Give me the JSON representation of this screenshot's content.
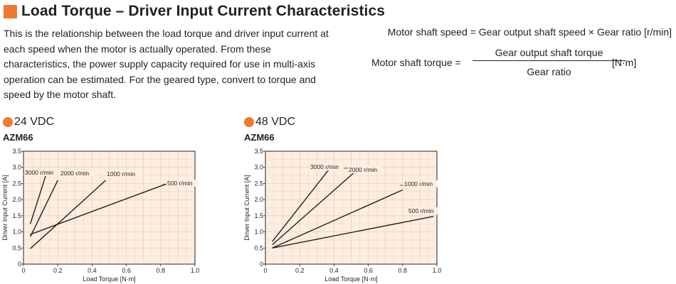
{
  "header": {
    "title": "Load Torque – Driver Input Current Characteristics",
    "accent_color": "#ee7a31"
  },
  "description": "This is the relationship between the load torque and driver input current at each speed when the motor is actually operated. From these characteristics, the power supply capacity required for use in multi-axis operation can be estimated. For the geared type, convert to torque and speed by the motor shaft.",
  "formulas": {
    "speed": "Motor shaft speed = Gear output shaft speed × Gear ratio [r/min]",
    "torque_label": "Motor shaft torque =",
    "torque_numerator": "Gear output shaft torque",
    "torque_denominator": "Gear ratio",
    "torque_unit": "[N·m]"
  },
  "chart_data": [
    {
      "type": "line",
      "voltage": "24 VDC",
      "model": "AZM66",
      "xlabel": "Load Torque [N·m]",
      "ylabel": "Driver Input Current [A]",
      "xlim": [
        0,
        1.0
      ],
      "ylim": [
        0,
        3.5
      ],
      "x_ticks": [
        "0",
        "0.2",
        "0.4",
        "0.6",
        "0.8",
        "1.0"
      ],
      "y_ticks": [
        "0",
        "0.5",
        "1.0",
        "1.5",
        "2.0",
        "2.5",
        "3.0",
        "3.5"
      ],
      "grid": true,
      "series": [
        {
          "name": "3000 r/min",
          "x": [
            0.04,
            0.13
          ],
          "y": [
            1.25,
            2.75
          ]
        },
        {
          "name": "2000 r/min",
          "x": [
            0.04,
            0.2
          ],
          "y": [
            0.85,
            2.6
          ]
        },
        {
          "name": "1000 r/min",
          "x": [
            0.04,
            0.48
          ],
          "y": [
            0.48,
            2.6
          ]
        },
        {
          "name": "500 r/min",
          "x": [
            0.04,
            0.83
          ],
          "y": [
            0.92,
            2.48
          ]
        }
      ]
    },
    {
      "type": "line",
      "voltage": "48 VDC",
      "model": "AZM66",
      "xlabel": "Load Torque [N·m]",
      "ylabel": "Driver Input Current [A]",
      "xlim": [
        0,
        1.0
      ],
      "ylim": [
        0,
        3.5
      ],
      "x_ticks": [
        "0",
        "0.2",
        "0.4",
        "0.6",
        "0.8",
        "1.0"
      ],
      "y_ticks": [
        "0",
        "0.5",
        "1.0",
        "1.5",
        "2.0",
        "2.5",
        "3.0",
        "3.5"
      ],
      "grid": true,
      "series": [
        {
          "name": "3000 r/min",
          "x": [
            0.04,
            0.38
          ],
          "y": [
            0.7,
            3.0
          ]
        },
        {
          "name": "2000 r/min",
          "x": [
            0.04,
            0.53
          ],
          "y": [
            0.6,
            2.9
          ]
        },
        {
          "name": "1000 r/min",
          "x": [
            0.04,
            0.8
          ],
          "y": [
            0.5,
            2.3
          ]
        },
        {
          "name": "500 r/min",
          "x": [
            0.04,
            0.98
          ],
          "y": [
            0.5,
            1.48
          ]
        }
      ]
    }
  ]
}
